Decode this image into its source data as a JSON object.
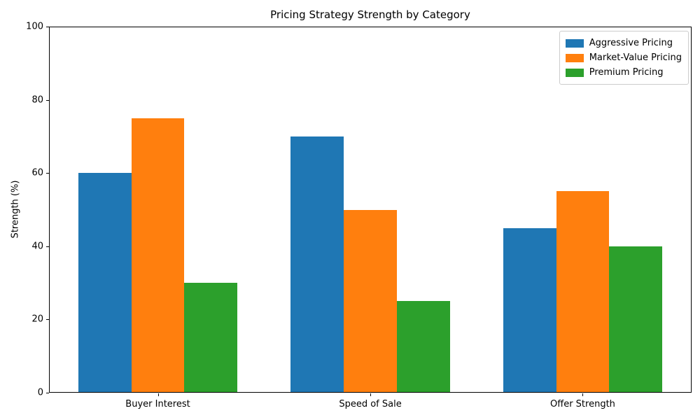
{
  "chart_data": {
    "type": "bar",
    "title": "Pricing Strategy Strength by Category",
    "xlabel": "",
    "ylabel": "Strength (%)",
    "categories": [
      "Buyer Interest",
      "Speed of Sale",
      "Offer Strength"
    ],
    "series": [
      {
        "name": "Aggressive Pricing",
        "color": "#1f77b4",
        "values": [
          60,
          70,
          45
        ]
      },
      {
        "name": "Market-Value Pricing",
        "color": "#ff7f0e",
        "values": [
          75,
          50,
          55
        ]
      },
      {
        "name": "Premium Pricing",
        "color": "#2ca02c",
        "values": [
          30,
          25,
          40
        ]
      }
    ],
    "ylim": [
      0,
      100
    ],
    "yticks": [
      0,
      20,
      40,
      60,
      80,
      100
    ],
    "xlim": [
      -0.5125,
      2.5125
    ],
    "bar_width": 0.25,
    "grid": false,
    "legend_position": "upper right",
    "spine_color": "#000000",
    "background_color": "#ffffff"
  }
}
